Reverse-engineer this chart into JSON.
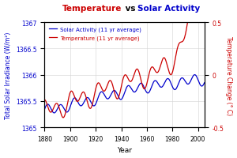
{
  "title_temp": "Temperature",
  "title_vs": " vs ",
  "title_solar": "Solar Activity",
  "xlabel": "Year",
  "ylabel_left": "Total Solar Irradiance (W/m²)",
  "ylabel_right": "Temperature Change (° C)",
  "legend_solar": "Solar Activity (11 yr average)",
  "legend_temp": "Temperature (11 yr average)",
  "color_solar": "#0000cc",
  "color_temp": "#cc0000",
  "xlim": [
    1880,
    2005
  ],
  "ylim_left": [
    1365.0,
    1367.0
  ],
  "ylim_right": [
    -0.5,
    0.5
  ],
  "yticks_left": [
    1365,
    1365.5,
    1366,
    1366.5,
    1367
  ],
  "yticks_right": [
    -0.5,
    0,
    0.5
  ],
  "xticks": [
    1880,
    1900,
    1920,
    1940,
    1960,
    1980,
    2000
  ],
  "background": "#ffffff"
}
